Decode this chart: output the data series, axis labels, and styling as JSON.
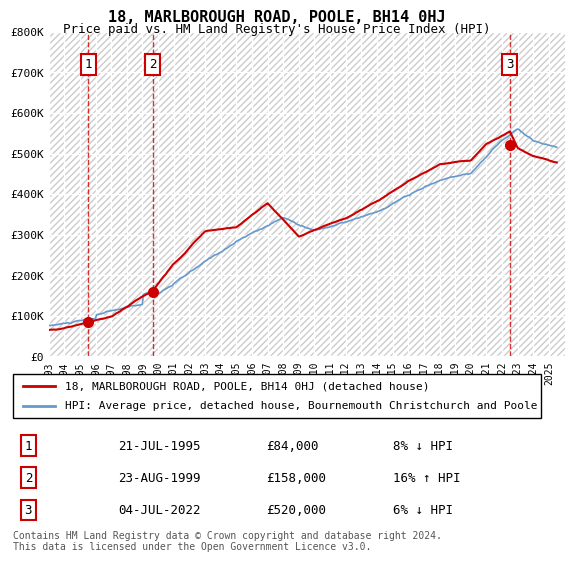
{
  "title": "18, MARLBOROUGH ROAD, POOLE, BH14 0HJ",
  "subtitle": "Price paid vs. HM Land Registry's House Price Index (HPI)",
  "ylabel_vals": [
    "£0",
    "£100K",
    "£200K",
    "£300K",
    "£400K",
    "£500K",
    "£600K",
    "£700K",
    "£800K"
  ],
  "ylim": [
    0,
    800000
  ],
  "xlim_start": 1993,
  "xlim_end": 2026,
  "sale_points": [
    {
      "label": "1",
      "date_num": 1995.55,
      "price": 84000
    },
    {
      "label": "2",
      "date_num": 1999.65,
      "price": 158000
    },
    {
      "label": "3",
      "date_num": 2022.5,
      "price": 520000
    }
  ],
  "sale_table": [
    {
      "num": "1",
      "date": "21-JUL-1995",
      "price": "£84,000",
      "hpi": "8% ↓ HPI"
    },
    {
      "num": "2",
      "date": "23-AUG-1999",
      "price": "£158,000",
      "hpi": "16% ↑ HPI"
    },
    {
      "num": "3",
      "date": "04-JUL-2022",
      "price": "£520,000",
      "hpi": "6% ↓ HPI"
    }
  ],
  "legend_line1": "18, MARLBOROUGH ROAD, POOLE, BH14 0HJ (detached house)",
  "legend_line2": "HPI: Average price, detached house, Bournemouth Christchurch and Poole",
  "footer": "Contains HM Land Registry data © Crown copyright and database right 2024.\nThis data is licensed under the Open Government Licence v3.0.",
  "line_color_red": "#cc0000",
  "line_color_blue": "#6699cc",
  "background_color": "#ffffff",
  "plot_bg_color": "#f0f0f0",
  "hatch_color": "#cccccc"
}
